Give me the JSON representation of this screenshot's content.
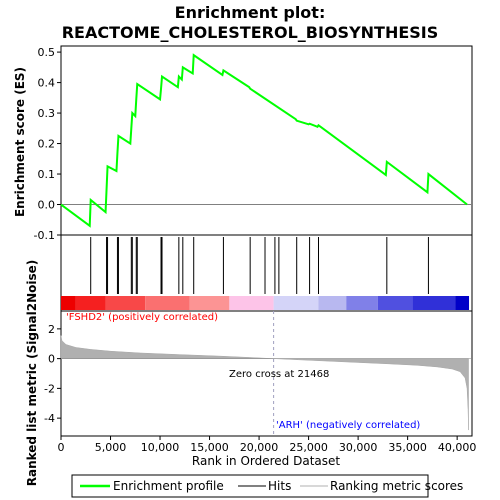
{
  "title_line1": "Enrichment plot:",
  "title_line2": "REACTOME_CHOLESTEROL_BIOSYNTHESIS",
  "colors": {
    "enrichment": "#00ff00",
    "hits": "#000000",
    "metric": "#b0b0b0",
    "positive_label": "#ff0000",
    "negative_label": "#0000ff",
    "zero_cross": "#a0a0c0"
  },
  "chart_data": [
    {
      "type": "line",
      "panel": "enrichment-score",
      "ylabel": "Enrichment score (ES)",
      "ylim": [
        -0.1,
        0.52
      ],
      "yticks": [
        -0.1,
        0.0,
        0.1,
        0.2,
        0.3,
        0.4,
        0.5
      ],
      "ytick_labels": [
        "-0.1",
        "0.0",
        "0.1",
        "0.2",
        "0.3",
        "0.4",
        "0.5"
      ],
      "xlim": [
        0,
        41500
      ],
      "series": [
        {
          "name": "Enrichment profile",
          "x": [
            0,
            2900,
            3000,
            4500,
            4600,
            4700,
            5600,
            5700,
            5800,
            7000,
            7100,
            7200,
            7500,
            7600,
            7700,
            10000,
            10100,
            10200,
            11800,
            11900,
            12200,
            12300,
            13300,
            13400,
            16300,
            16400,
            19000,
            19100,
            23700,
            23800,
            25000,
            25100,
            25900,
            26000,
            32800,
            32900,
            37000,
            37100,
            41000
          ],
          "y": [
            0.0,
            -0.07,
            0.015,
            -0.025,
            0.05,
            0.125,
            0.11,
            0.17,
            0.225,
            0.2,
            0.25,
            0.3,
            0.29,
            0.345,
            0.395,
            0.345,
            0.38,
            0.42,
            0.385,
            0.42,
            0.41,
            0.45,
            0.43,
            0.49,
            0.425,
            0.44,
            0.385,
            0.38,
            0.28,
            0.275,
            0.263,
            0.265,
            0.255,
            0.26,
            0.097,
            0.14,
            0.04,
            0.1,
            0.0
          ]
        }
      ]
    },
    {
      "type": "scatter",
      "panel": "hits",
      "series": [
        {
          "name": "Hits",
          "x": [
            3000,
            4600,
            4700,
            5700,
            5800,
            7100,
            7200,
            7600,
            7700,
            10100,
            10200,
            11900,
            12300,
            13400,
            16400,
            19100,
            20600,
            21600,
            22000,
            23800,
            25100,
            26000,
            32900,
            37100
          ]
        }
      ]
    },
    {
      "type": "area",
      "panel": "ranked-list-metric",
      "ylabel": "Ranked list metric (Signal2Noise)",
      "xlabel": "Rank in Ordered Dataset",
      "ylim": [
        -5.2,
        3.2
      ],
      "yticks": [
        -4,
        -2,
        0,
        2
      ],
      "ytick_labels": [
        "-4",
        "-2",
        "0",
        "2"
      ],
      "xlim": [
        0,
        41500
      ],
      "xticks": [
        0,
        5000,
        10000,
        15000,
        20000,
        25000,
        30000,
        35000,
        40000
      ],
      "xtick_labels": [
        "0",
        "5,000",
        "10,000",
        "15,000",
        "20,000",
        "25,000",
        "30,000",
        "35,000",
        "40,000"
      ],
      "series": [
        {
          "name": "Ranking metric scores",
          "x": [
            0,
            100,
            500,
            1500,
            3000,
            5000,
            8000,
            12000,
            16000,
            19000,
            21468,
            24000,
            27000,
            30000,
            33000,
            36000,
            38000,
            39500,
            40300,
            40800,
            41000,
            41100,
            41150
          ],
          "y": [
            1.55,
            1.2,
            0.95,
            0.75,
            0.62,
            0.5,
            0.38,
            0.27,
            0.17,
            0.08,
            0.0,
            -0.08,
            -0.17,
            -0.26,
            -0.35,
            -0.45,
            -0.56,
            -0.7,
            -0.88,
            -1.3,
            -2.0,
            -3.4,
            -4.8
          ]
        }
      ],
      "zero_cross_x": 21468,
      "zero_cross_label": "Zero cross at 21468",
      "positive_label": "'FSHD2' (positively correlated)",
      "negative_label": "'ARH' (negatively correlated)"
    }
  ],
  "legend": {
    "placement": "bottom",
    "items": [
      {
        "label": "Enrichment profile",
        "color": "#00ff00"
      },
      {
        "label": "Hits",
        "color": "#000000"
      },
      {
        "label": "Ranking metric scores",
        "color": "#b0b0b0"
      }
    ]
  }
}
